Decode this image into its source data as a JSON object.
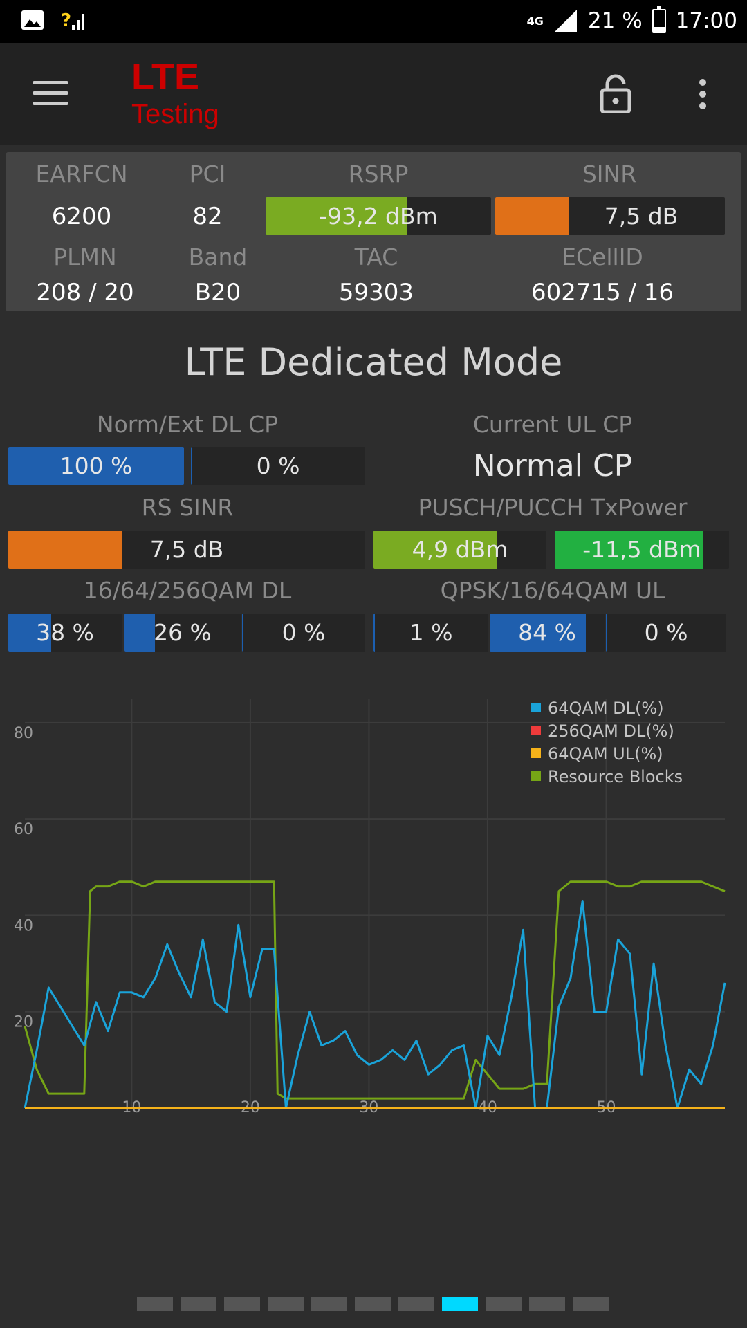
{
  "status_bar": {
    "network": "4G",
    "battery_text": "21 %",
    "battery_level": 0.21,
    "time": "17:00"
  },
  "app_bar": {
    "title": "LTE",
    "subtitle": "Testing"
  },
  "serving_cell": {
    "earfcn_label": "EARFCN",
    "earfcn": "6200",
    "pci_label": "PCI",
    "pci": "82",
    "rsrp_label": "RSRP",
    "rsrp": "-93,2 dBm",
    "rsrp_level": 0.63,
    "sinr_label": "SINR",
    "sinr": "7,5 dB",
    "sinr_level": 0.32,
    "plmn_label": "PLMN",
    "plmn": "208 / 20",
    "band_label": "Band",
    "band": "B20",
    "tac_label": "TAC",
    "tac": "59303",
    "ecellid_label": "ECellID",
    "ecellid": "602715 / 16"
  },
  "dedicated": {
    "title": "LTE Dedicated Mode",
    "dl_cp_label": "Norm/Ext DL CP",
    "dl_cp_norm": "100 %",
    "dl_cp_norm_level": 1.0,
    "dl_cp_ext": "0 %",
    "dl_cp_ext_level": 0,
    "ul_cp_label": "Current UL CP",
    "ul_cp_value": "Normal CP",
    "rs_sinr_label": "RS SINR",
    "rs_sinr": "7,5 dB",
    "rs_sinr_level": 0.32,
    "txpower_label": "PUSCH/PUCCH TxPower",
    "pusch": "4,9 dBm",
    "pusch_level": 0.71,
    "pucch": "-11,5 dBm",
    "pucch_level": 0.85,
    "qam_dl_label": "16/64/256QAM DL",
    "qam_dl": [
      {
        "text": "38 %",
        "level": 0.38
      },
      {
        "text": "26 %",
        "level": 0.26
      },
      {
        "text": "0 %",
        "level": 0
      }
    ],
    "qam_ul_label": "QPSK/16/64QAM UL",
    "qam_ul": [
      {
        "text": "1 %",
        "level": 0.01
      },
      {
        "text": "84 %",
        "level": 0.84
      },
      {
        "text": "0 %",
        "level": 0
      }
    ]
  },
  "colors": {
    "green_bar": "#7aab22",
    "orange_bar": "#e07018",
    "bright_green": "#22b041",
    "blue_bar": "#1f5fae",
    "series_64qam_dl": "#1aa3d9",
    "series_256qam_dl": "#ee3b3b",
    "series_64qam_ul": "#f5b21a",
    "series_rb": "#76a516",
    "pager_active": "#00d9ff"
  },
  "chart_data": {
    "type": "line",
    "x_ticks": [
      "10",
      "20",
      "30",
      "40",
      "50"
    ],
    "y_ticks": [
      "20",
      "40",
      "60",
      "80"
    ],
    "xlim": [
      1,
      60
    ],
    "ylim": [
      0,
      85
    ],
    "grid": true,
    "legend_position": "top-right",
    "series": [
      {
        "name": "64QAM DL(%)",
        "x": [
          1,
          2,
          3,
          4,
          5,
          6,
          7,
          8,
          9,
          10,
          11,
          12,
          13,
          14,
          15,
          16,
          17,
          18,
          19,
          20,
          21,
          22,
          23,
          24,
          25,
          26,
          27,
          28,
          29,
          30,
          31,
          32,
          33,
          34,
          35,
          36,
          37,
          38,
          39,
          40,
          41,
          42,
          43,
          44,
          45,
          46,
          47,
          48,
          49,
          50,
          51,
          52,
          53,
          54,
          55,
          56,
          57,
          58,
          59,
          60
        ],
        "y": [
          0,
          12,
          25,
          21,
          17,
          13,
          22,
          16,
          24,
          24,
          23,
          27,
          34,
          28,
          23,
          35,
          22,
          20,
          38,
          23,
          33,
          33,
          0,
          11,
          20,
          13,
          14,
          16,
          11,
          9,
          10,
          12,
          10,
          14,
          7,
          9,
          12,
          13,
          0,
          15,
          11,
          23,
          37,
          0,
          0,
          21,
          27,
          43,
          20,
          20,
          35,
          32,
          7,
          30,
          13,
          0,
          8,
          5,
          13,
          26
        ]
      },
      {
        "name": "256QAM DL(%)",
        "x": [
          1,
          60
        ],
        "y": [
          0,
          0
        ]
      },
      {
        "name": "64QAM UL(%)",
        "x": [
          1,
          60
        ],
        "y": [
          0,
          0
        ]
      },
      {
        "name": "Resource Blocks",
        "x": [
          1,
          2,
          3,
          4,
          5,
          6,
          6.5,
          7,
          8,
          9,
          10,
          11,
          12,
          13,
          14,
          15,
          16,
          17,
          18,
          19,
          20,
          21,
          22,
          22.3,
          23,
          24,
          25,
          26,
          27,
          28,
          29,
          30,
          31,
          32,
          33,
          34,
          35,
          36,
          37,
          38,
          39,
          40,
          41,
          42,
          43,
          44,
          45,
          46,
          46.5,
          47,
          48,
          49,
          50,
          51,
          52,
          53,
          54,
          55,
          56,
          57,
          58,
          59,
          60
        ],
        "y": [
          17,
          8,
          3,
          3,
          3,
          3,
          45,
          46,
          46,
          47,
          47,
          46,
          47,
          47,
          47,
          47,
          47,
          47,
          47,
          47,
          47,
          47,
          47,
          3,
          2,
          2,
          2,
          2,
          2,
          2,
          2,
          2,
          2,
          2,
          2,
          2,
          2,
          2,
          2,
          2,
          10,
          7,
          4,
          4,
          4,
          5,
          5,
          45,
          46,
          47,
          47,
          47,
          47,
          46,
          46,
          47,
          47,
          47,
          47,
          47,
          47,
          46,
          45
        ]
      }
    ]
  },
  "pager": {
    "count": 11,
    "active": 7
  }
}
